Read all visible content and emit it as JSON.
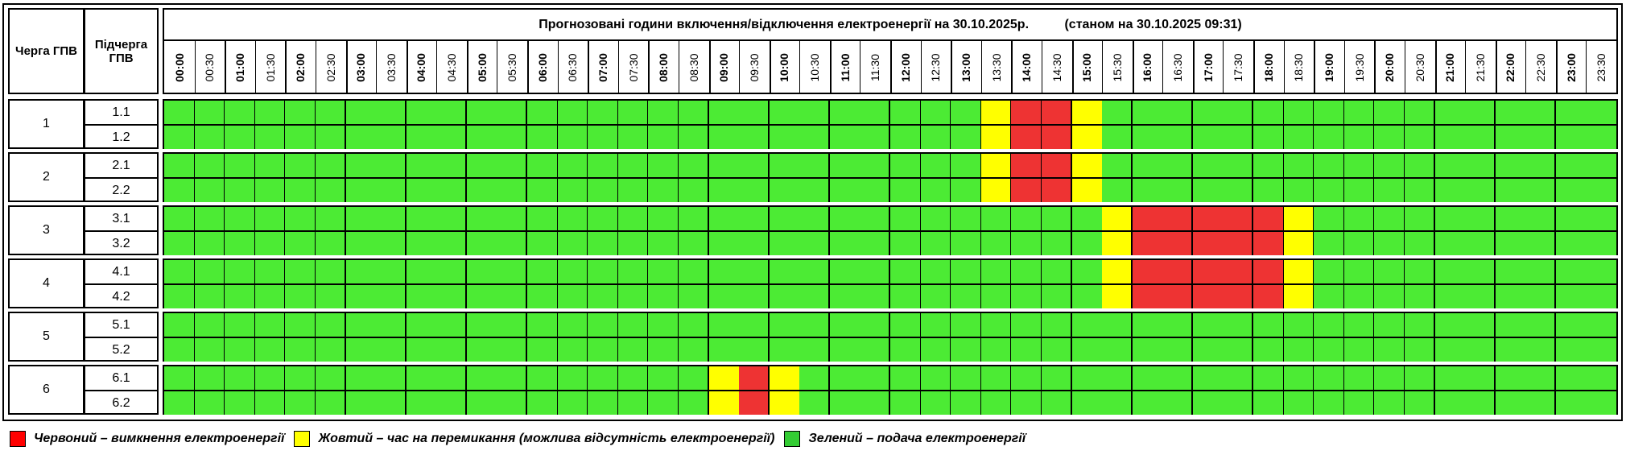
{
  "header": {
    "col_queue": "Черга ГПВ",
    "col_subqueue": "Підчерга ГПВ",
    "title": "Прогнозовані години включення/відключення електроенергії на 30.10.2025р.          (станом на 30.10.2025 09:31)"
  },
  "times": [
    "00:00",
    "00:30",
    "01:00",
    "01:30",
    "02:00",
    "02:30",
    "03:00",
    "03:30",
    "04:00",
    "04:30",
    "05:00",
    "05:30",
    "06:00",
    "06:30",
    "07:00",
    "07:30",
    "08:00",
    "08:30",
    "09:00",
    "09:30",
    "10:00",
    "10:30",
    "11:00",
    "11:30",
    "12:00",
    "12:30",
    "13:00",
    "13:30",
    "14:00",
    "14:30",
    "15:00",
    "15:30",
    "16:00",
    "16:30",
    "17:00",
    "17:30",
    "18:00",
    "18:30",
    "19:00",
    "19:30",
    "20:00",
    "20:30",
    "21:00",
    "21:30",
    "22:00",
    "22:30",
    "23:00",
    "23:30"
  ],
  "colors": {
    "red": "#ee3333",
    "yellow": "#ffff00",
    "green": "#4ceb34"
  },
  "groups": [
    {
      "label": "1",
      "subs": [
        {
          "label": "1.1",
          "statuses": "GGGGGGGGGGGGGGGGGGGGGGGGGGGYRRYGGGGGGGGGGGGGGGGG"
        },
        {
          "label": "1.2",
          "statuses": "GGGGGGGGGGGGGGGGGGGGGGGGGGGYRRYGGGGGGGGGGGGGGGGG"
        }
      ]
    },
    {
      "label": "2",
      "subs": [
        {
          "label": "2.1",
          "statuses": "GGGGGGGGGGGGGGGGGGGGGGGGGGGYRRYGGGGGGGGGGGGGGGGG"
        },
        {
          "label": "2.2",
          "statuses": "GGGGGGGGGGGGGGGGGGGGGGGGGGGYRRYGGGGGGGGGGGGGGGGG"
        }
      ]
    },
    {
      "label": "3",
      "subs": [
        {
          "label": "3.1",
          "statuses": "GGGGGGGGGGGGGGGGGGGGGGGGGGGGGGGYRRRRRYGGGGGGGGGG"
        },
        {
          "label": "3.2",
          "statuses": "GGGGGGGGGGGGGGGGGGGGGGGGGGGGGGGYRRRRRYGGGGGGGGGG"
        }
      ]
    },
    {
      "label": "4",
      "subs": [
        {
          "label": "4.1",
          "statuses": "GGGGGGGGGGGGGGGGGGGGGGGGGGGGGGGYRRRRRYGGGGGGGGGG"
        },
        {
          "label": "4.2",
          "statuses": "GGGGGGGGGGGGGGGGGGGGGGGGGGGGGGGYRRRRRYGGGGGGGGGG"
        }
      ]
    },
    {
      "label": "5",
      "subs": [
        {
          "label": "5.1",
          "statuses": "GGGGGGGGGGGGGGGGGGGGGGGGGGGGGGGGGGGGGGGGGGGGGGGG"
        },
        {
          "label": "5.2",
          "statuses": "GGGGGGGGGGGGGGGGGGGGGGGGGGGGGGGGGGGGGGGGGGGGGGGG"
        }
      ]
    },
    {
      "label": "6",
      "subs": [
        {
          "label": "6.1",
          "statuses": "GGGGGGGGGGGGGGGGGGYRYGGGGGGGGGGGGGGGGGGGGGGGGGGG"
        },
        {
          "label": "6.2",
          "statuses": "GGGGGGGGGGGGGGGGGGYRYGGGGGGGGGGGGGGGGGGGGGGGGGGG"
        }
      ]
    }
  ],
  "legend": [
    {
      "color": "#ff0000",
      "text": "Червоний – вимкнення електроенергії"
    },
    {
      "color": "#ffff00",
      "text": "Жовтий – час на перемикання (можлива відсутність електроенергії)"
    },
    {
      "color": "#33cc33",
      "text": "Зелений – подача електроенергії"
    }
  ]
}
